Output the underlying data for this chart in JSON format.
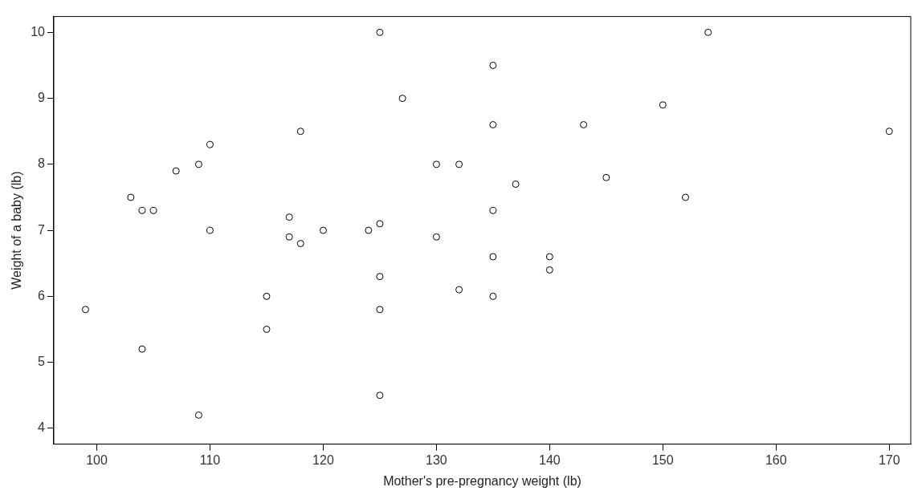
{
  "chart_data": {
    "type": "scatter",
    "xlabel": "Mother's pre-pregnancy weight (lb)",
    "ylabel": "Weight of a baby (lb)",
    "x": [
      125,
      154,
      135,
      127,
      150,
      135,
      143,
      118,
      170,
      110,
      109,
      130,
      132,
      107,
      145,
      137,
      103,
      152,
      104,
      105,
      135,
      117,
      125,
      110,
      120,
      124,
      117,
      130,
      118,
      135,
      140,
      140,
      125,
      132,
      115,
      135,
      99,
      125,
      115,
      104,
      125,
      109
    ],
    "series": [
      {
        "color": "#000000",
        "values": [
          10,
          10,
          9.5,
          9.0,
          8.9,
          8.6,
          8.6,
          8.5,
          8.5,
          8.3,
          8.0,
          8.0,
          8.0,
          7.9,
          7.8,
          7.7,
          7.5,
          7.5,
          7.3,
          7.3,
          7.3,
          7.2,
          7.1,
          7.0,
          7.0,
          7.0,
          6.9,
          6.9,
          6.8,
          6.6,
          6.6,
          6.4,
          6.3,
          6.1,
          6.0,
          6.0,
          5.8,
          5.8,
          5.5,
          5.2,
          4.5,
          4.2
        ]
      }
    ],
    "xlim": [
      96.2,
      171.9
    ],
    "ylim": [
      3.76,
      10.24
    ],
    "xticks": [
      100,
      110,
      120,
      130,
      140,
      150,
      160,
      170
    ],
    "yticks": [
      4,
      5,
      6,
      7,
      8,
      9,
      10
    ],
    "grid": false,
    "legend": false,
    "marker": "circle"
  }
}
